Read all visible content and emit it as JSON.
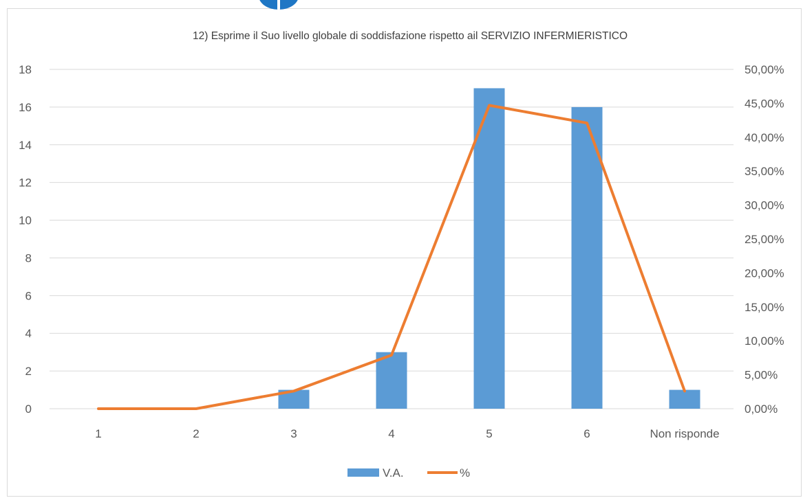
{
  "chart_data": {
    "type": "bar",
    "title": "12) Esprime il Suo livello globale di soddisfazione rispetto ail SERVIZIO INFERMIERISTICO",
    "categories": [
      "1",
      "2",
      "3",
      "4",
      "5",
      "6",
      "Non risponde"
    ],
    "series": [
      {
        "name": "V.A.",
        "type": "bar",
        "axis": "left",
        "color": "#5b9bd5",
        "values": [
          0,
          0,
          1,
          3,
          17,
          16,
          1
        ]
      },
      {
        "name": "%",
        "type": "line",
        "axis": "right",
        "color": "#ed7d31",
        "values": [
          0,
          0,
          2.6,
          7.9,
          44.7,
          42.1,
          2.6
        ]
      }
    ],
    "y_left": {
      "lim": [
        0,
        18
      ],
      "ticks": [
        0,
        2,
        4,
        6,
        8,
        10,
        12,
        14,
        16,
        18
      ]
    },
    "y_right": {
      "lim": [
        0,
        50
      ],
      "ticks": [
        0,
        5,
        10,
        15,
        20,
        25,
        30,
        35,
        40,
        45,
        50
      ],
      "tick_labels": [
        "0,00%",
        "5,00%",
        "10,00%",
        "15,00%",
        "20,00%",
        "25,00%",
        "30,00%",
        "35,00%",
        "40,00%",
        "45,00%",
        "50,00%"
      ]
    },
    "grid": true,
    "legend": "bottom"
  },
  "colors": {
    "bar": "#5b9bd5",
    "line": "#ed7d31",
    "grid": "#d9d9d9",
    "text": "#595959"
  }
}
